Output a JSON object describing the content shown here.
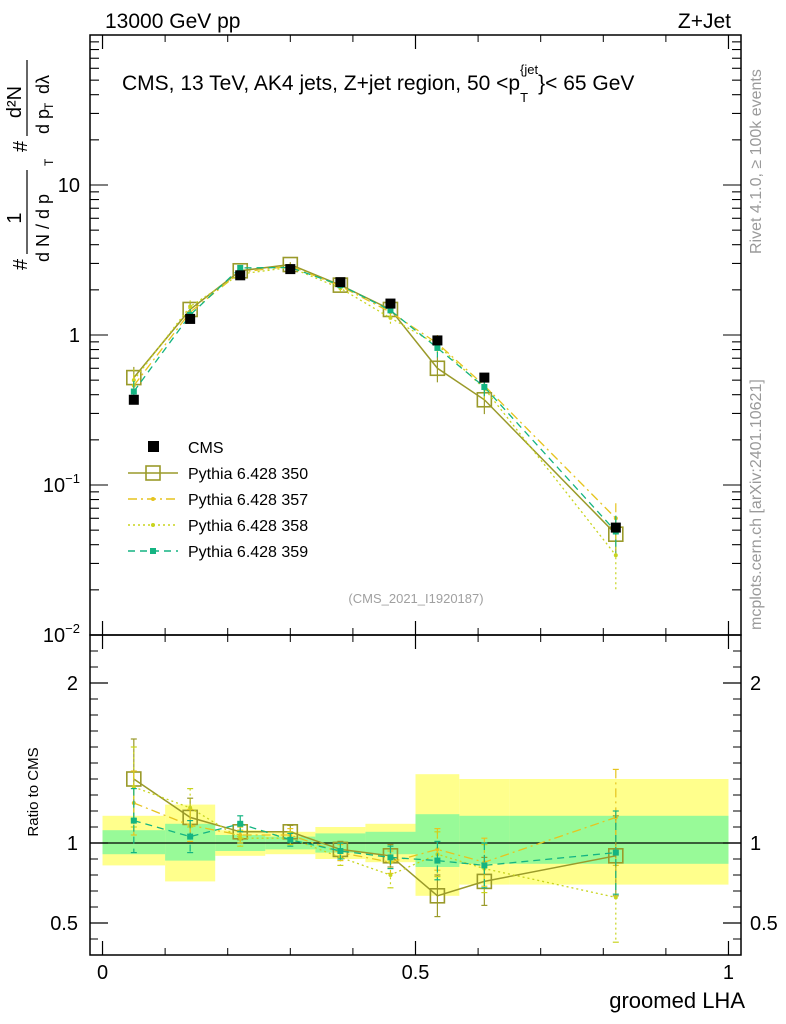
{
  "header": {
    "left": "13000 GeV pp",
    "right": "Z+Jet"
  },
  "side_labels": {
    "rivet": "Rivet 4.1.0, ≥ 100k events",
    "mcplots": "mcplots.cern.ch [arXiv:2401.10621]"
  },
  "chart_data": {
    "type": "line",
    "title_parts": {
      "main": "CMS, 13 TeV, AK4 jets, Z+jet region, 50 <p",
      "sub": "T",
      "sup": "{jet",
      "tail": "}< 65 GeV"
    },
    "analysis_id": "(CMS_2021_I1920187)",
    "xlabel": "groomed LHA",
    "ylabel_parts": {
      "hash1": "#",
      "frac1_num": "1",
      "frac1_den": "d N / d p",
      "hash2": "#",
      "frac2_num": "d²N",
      "frac2_den": "d p",
      "d_lambda": "dλ",
      "T": "T"
    },
    "ratio_ylabel": "Ratio to CMS",
    "xlim": [
      -0.02,
      1.02
    ],
    "ylim": [
      0.01,
      100
    ],
    "yscale": "log",
    "ratio_ylim": [
      0.3,
      2.3
    ],
    "x_ticks": [
      {
        "v": 0,
        "label": "0"
      },
      {
        "v": 0.5,
        "label": "0.5"
      },
      {
        "v": 1,
        "label": "1"
      }
    ],
    "y_ticks": [
      {
        "v": 0.01,
        "base": "10",
        "exp": "−2"
      },
      {
        "v": 0.1,
        "base": "10",
        "exp": "−1"
      },
      {
        "v": 1,
        "base": "1",
        "exp": ""
      },
      {
        "v": 10,
        "base": "10",
        "exp": ""
      }
    ],
    "ratio_ticks": [
      {
        "v": 0.5,
        "label": "0.5"
      },
      {
        "v": 1,
        "label": "1"
      },
      {
        "v": 2,
        "label": "2"
      }
    ],
    "bins": [
      0,
      0.1,
      0.18,
      0.26,
      0.34,
      0.42,
      0.5,
      0.57,
      0.65,
      1.0
    ],
    "x": [
      0.05,
      0.14,
      0.22,
      0.3,
      0.38,
      0.46,
      0.535,
      0.61,
      0.82
    ],
    "data": {
      "name": "CMS",
      "values": [
        0.37,
        1.28,
        2.5,
        2.75,
        2.25,
        1.62,
        0.92,
        0.52,
        0.052
      ],
      "band_yellow": [
        [
          0.86,
          1.17
        ],
        [
          0.76,
          1.24
        ],
        [
          0.92,
          1.08
        ],
        [
          0.93,
          1.07
        ],
        [
          0.9,
          1.1
        ],
        [
          0.88,
          1.12
        ],
        [
          0.67,
          1.43
        ],
        [
          0.74,
          1.4
        ],
        [
          0.74,
          1.4
        ]
      ],
      "band_green": [
        [
          0.93,
          1.08
        ],
        [
          0.89,
          1.12
        ],
        [
          0.95,
          1.05
        ],
        [
          0.96,
          1.04
        ],
        [
          0.94,
          1.06
        ],
        [
          0.93,
          1.07
        ],
        [
          0.85,
          1.18
        ],
        [
          0.87,
          1.17
        ],
        [
          0.87,
          1.17
        ]
      ]
    },
    "series": [
      {
        "name": "Pythia 6.428 350",
        "color": "#9a9a2a",
        "style": "solid",
        "marker": "open-square",
        "values": [
          0.52,
          1.48,
          2.68,
          2.95,
          2.15,
          1.48,
          0.6,
          0.37,
          0.047
        ],
        "ratio": [
          1.4,
          1.16,
          1.07,
          1.07,
          0.96,
          0.92,
          0.67,
          0.76,
          0.92
        ],
        "ratio_err": [
          0.25,
          0.12,
          0.05,
          0.04,
          0.05,
          0.07,
          0.13,
          0.15,
          0.25
        ]
      },
      {
        "name": "Pythia 6.428 357",
        "color": "#e6c41e",
        "style": "dashdot",
        "marker": "dot",
        "values": [
          0.46,
          1.42,
          2.62,
          2.88,
          2.12,
          1.42,
          0.88,
          0.46,
          0.06
        ],
        "ratio": [
          1.25,
          1.11,
          1.05,
          1.05,
          0.94,
          0.88,
          0.96,
          0.88,
          1.16
        ],
        "ratio_err": [
          0.2,
          0.1,
          0.05,
          0.04,
          0.05,
          0.07,
          0.13,
          0.15,
          0.3
        ]
      },
      {
        "name": "Pythia 6.428 358",
        "color": "#c8d41e",
        "style": "dotted",
        "marker": "dot",
        "values": [
          0.5,
          1.55,
          2.55,
          2.82,
          2.05,
          1.3,
          0.86,
          0.44,
          0.034
        ],
        "ratio": [
          1.35,
          1.22,
          1.03,
          1.03,
          0.91,
          0.8,
          0.93,
          0.84,
          0.66
        ],
        "ratio_err": [
          0.25,
          0.12,
          0.05,
          0.04,
          0.05,
          0.08,
          0.14,
          0.15,
          0.28
        ]
      },
      {
        "name": "Pythia 6.428 359",
        "color": "#14b482",
        "style": "dashed",
        "marker": "filled-square",
        "values": [
          0.42,
          1.36,
          2.8,
          2.82,
          2.15,
          1.46,
          0.82,
          0.45,
          0.049
        ],
        "ratio": [
          1.14,
          1.04,
          1.12,
          1.02,
          0.95,
          0.91,
          0.89,
          0.86,
          0.94
        ],
        "ratio_err": [
          0.2,
          0.1,
          0.05,
          0.04,
          0.05,
          0.07,
          0.12,
          0.14,
          0.26
        ]
      }
    ]
  }
}
